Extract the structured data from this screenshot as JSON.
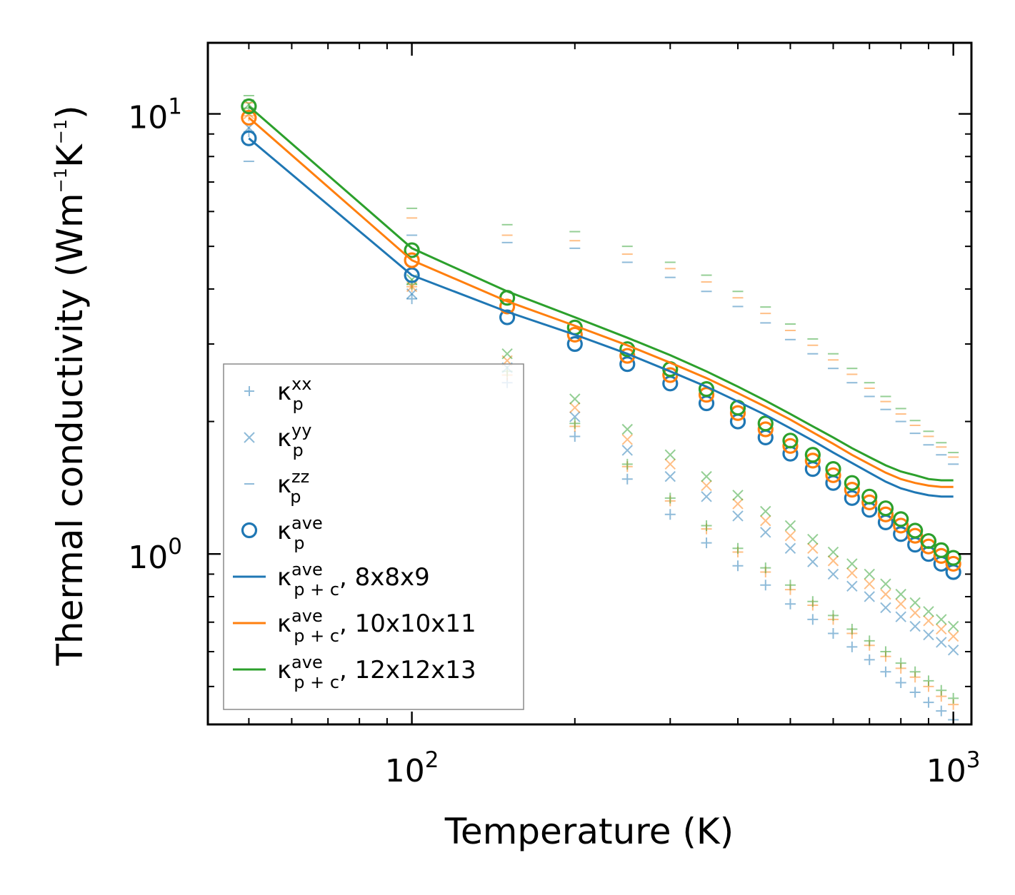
{
  "chart_data": {
    "type": "scatter",
    "scale": {
      "x": "log",
      "y": "log"
    },
    "xlim": [
      42,
      1080
    ],
    "ylim": [
      0.41,
      14.5
    ],
    "xlabel": "Temperature (K)",
    "ylabel": {
      "base": "Thermal conductivity (Wm",
      "sup1": "−1",
      "mid": "K",
      "sup2": "−1",
      "end": ")"
    },
    "xticks": [
      {
        "value": 100,
        "base": "10",
        "exp": "2"
      },
      {
        "value": 1000,
        "base": "10",
        "exp": "3"
      }
    ],
    "yticks": [
      {
        "value": 1,
        "base": "10",
        "exp": "0"
      },
      {
        "value": 10,
        "base": "10",
        "exp": "1"
      }
    ],
    "x": [
      50,
      100,
      150,
      200,
      250,
      300,
      350,
      400,
      450,
      500,
      550,
      600,
      650,
      700,
      750,
      800,
      850,
      900,
      950,
      1000
    ],
    "colors": {
      "8x8x9": "#1f77b4",
      "10x10x11": "#ff7f0e",
      "12x12x13": "#2ca02c"
    },
    "series": [
      {
        "name": "8x8x9",
        "kind": "kxx",
        "marker": "+",
        "values": [
          9.1,
          3.8,
          2.45,
          1.85,
          1.48,
          1.23,
          1.06,
          0.94,
          0.85,
          0.77,
          0.71,
          0.66,
          0.615,
          0.575,
          0.54,
          0.51,
          0.485,
          0.46,
          0.44,
          0.42
        ]
      },
      {
        "name": "10x10x11",
        "kind": "kxx",
        "marker": "+",
        "values": [
          9.9,
          4.05,
          2.55,
          1.95,
          1.58,
          1.32,
          1.14,
          1.01,
          0.91,
          0.83,
          0.765,
          0.71,
          0.66,
          0.62,
          0.585,
          0.55,
          0.525,
          0.5,
          0.475,
          0.455
        ]
      },
      {
        "name": "12x12x13",
        "kind": "kxx",
        "marker": "+",
        "values": [
          10.3,
          4.1,
          2.6,
          1.98,
          1.6,
          1.34,
          1.16,
          1.03,
          0.93,
          0.85,
          0.78,
          0.725,
          0.675,
          0.635,
          0.6,
          0.565,
          0.54,
          0.515,
          0.49,
          0.47
        ]
      },
      {
        "name": "8x8x9",
        "kind": "kyy",
        "marker": "x",
        "values": [
          9.3,
          3.9,
          2.65,
          2.05,
          1.72,
          1.5,
          1.35,
          1.22,
          1.12,
          1.03,
          0.96,
          0.9,
          0.845,
          0.8,
          0.755,
          0.72,
          0.685,
          0.655,
          0.63,
          0.605
        ]
      },
      {
        "name": "10x10x11",
        "kind": "kyy",
        "marker": "x",
        "values": [
          10.0,
          4.05,
          2.75,
          2.15,
          1.82,
          1.6,
          1.43,
          1.3,
          1.19,
          1.1,
          1.03,
          0.965,
          0.905,
          0.855,
          0.81,
          0.77,
          0.735,
          0.705,
          0.675,
          0.65
        ]
      },
      {
        "name": "12x12x13",
        "kind": "kyy",
        "marker": "x",
        "values": [
          10.5,
          4.2,
          2.85,
          2.25,
          1.92,
          1.68,
          1.5,
          1.36,
          1.25,
          1.16,
          1.08,
          1.01,
          0.95,
          0.9,
          0.855,
          0.81,
          0.775,
          0.74,
          0.71,
          0.685
        ]
      },
      {
        "name": "8x8x9",
        "kind": "kzz",
        "marker": "_",
        "values": [
          7.8,
          5.3,
          5.1,
          4.95,
          4.6,
          4.25,
          3.95,
          3.65,
          3.35,
          3.07,
          2.85,
          2.64,
          2.45,
          2.28,
          2.13,
          2.0,
          1.88,
          1.77,
          1.68,
          1.6
        ]
      },
      {
        "name": "10x10x11",
        "kind": "kzz",
        "marker": "_",
        "values": [
          10.6,
          5.8,
          5.3,
          5.15,
          4.8,
          4.45,
          4.15,
          3.82,
          3.52,
          3.22,
          2.98,
          2.76,
          2.56,
          2.38,
          2.22,
          2.08,
          1.96,
          1.85,
          1.75,
          1.66
        ]
      },
      {
        "name": "12x12x13",
        "kind": "kzz",
        "marker": "_",
        "values": [
          11.0,
          6.1,
          5.6,
          5.4,
          5.0,
          4.6,
          4.3,
          3.95,
          3.64,
          3.33,
          3.08,
          2.85,
          2.64,
          2.45,
          2.28,
          2.14,
          2.01,
          1.9,
          1.79,
          1.7
        ]
      },
      {
        "name": "8x8x9",
        "kind": "kave",
        "marker": "o",
        "values": [
          8.8,
          4.3,
          3.45,
          3.0,
          2.7,
          2.44,
          2.2,
          2.0,
          1.84,
          1.69,
          1.56,
          1.45,
          1.34,
          1.26,
          1.18,
          1.11,
          1.05,
          1.0,
          0.95,
          0.91
        ]
      },
      {
        "name": "10x10x11",
        "kind": "kave",
        "marker": "o",
        "values": [
          9.8,
          4.65,
          3.65,
          3.15,
          2.82,
          2.55,
          2.3,
          2.09,
          1.92,
          1.76,
          1.63,
          1.51,
          1.4,
          1.31,
          1.23,
          1.16,
          1.1,
          1.04,
          0.99,
          0.95
        ]
      },
      {
        "name": "12x12x13",
        "kind": "kave",
        "marker": "o",
        "values": [
          10.4,
          4.9,
          3.82,
          3.27,
          2.92,
          2.63,
          2.37,
          2.15,
          1.98,
          1.81,
          1.68,
          1.56,
          1.45,
          1.35,
          1.27,
          1.2,
          1.13,
          1.07,
          1.02,
          0.98
        ]
      },
      {
        "name": "8x8x9",
        "kind": "kpc",
        "marker": "line",
        "values": [
          8.8,
          4.3,
          3.55,
          3.15,
          2.85,
          2.6,
          2.4,
          2.22,
          2.07,
          1.93,
          1.81,
          1.7,
          1.61,
          1.53,
          1.46,
          1.41,
          1.38,
          1.36,
          1.35,
          1.35
        ]
      },
      {
        "name": "10x10x11",
        "kind": "kpc",
        "marker": "line",
        "values": [
          9.8,
          4.65,
          3.75,
          3.3,
          2.98,
          2.72,
          2.51,
          2.32,
          2.16,
          2.02,
          1.89,
          1.78,
          1.68,
          1.6,
          1.53,
          1.48,
          1.45,
          1.43,
          1.42,
          1.42
        ]
      },
      {
        "name": "12x12x13",
        "kind": "kpc",
        "marker": "line",
        "values": [
          10.4,
          4.95,
          3.95,
          3.45,
          3.1,
          2.83,
          2.6,
          2.4,
          2.23,
          2.08,
          1.95,
          1.84,
          1.74,
          1.66,
          1.59,
          1.54,
          1.51,
          1.48,
          1.47,
          1.47
        ]
      }
    ],
    "legend": {
      "placement": "lower-left",
      "entries": [
        {
          "marker": "+",
          "color": "#1f77b4",
          "alpha": 0.5,
          "kappa": "κ",
          "sub": "p",
          "sup": "xx",
          "suffix": ""
        },
        {
          "marker": "x",
          "color": "#1f77b4",
          "alpha": 0.5,
          "kappa": "κ",
          "sub": "p",
          "sup": "yy",
          "suffix": ""
        },
        {
          "marker": "_",
          "color": "#1f77b4",
          "alpha": 0.5,
          "kappa": "κ",
          "sub": "p",
          "sup": "zz",
          "suffix": ""
        },
        {
          "marker": "o",
          "color": "#1f77b4",
          "alpha": 1,
          "kappa": "κ",
          "sub": "p",
          "sup": "ave",
          "suffix": ""
        },
        {
          "marker": "line",
          "color": "#1f77b4",
          "alpha": 1,
          "kappa": "κ",
          "sub": "p + c",
          "sup": "ave",
          "suffix": ", 8x8x9"
        },
        {
          "marker": "line",
          "color": "#ff7f0e",
          "alpha": 1,
          "kappa": "κ",
          "sub": "p + c",
          "sup": "ave",
          "suffix": ", 10x10x11"
        },
        {
          "marker": "line",
          "color": "#2ca02c",
          "alpha": 1,
          "kappa": "κ",
          "sub": "p + c",
          "sup": "ave",
          "suffix": ", 12x12x13"
        }
      ]
    }
  }
}
